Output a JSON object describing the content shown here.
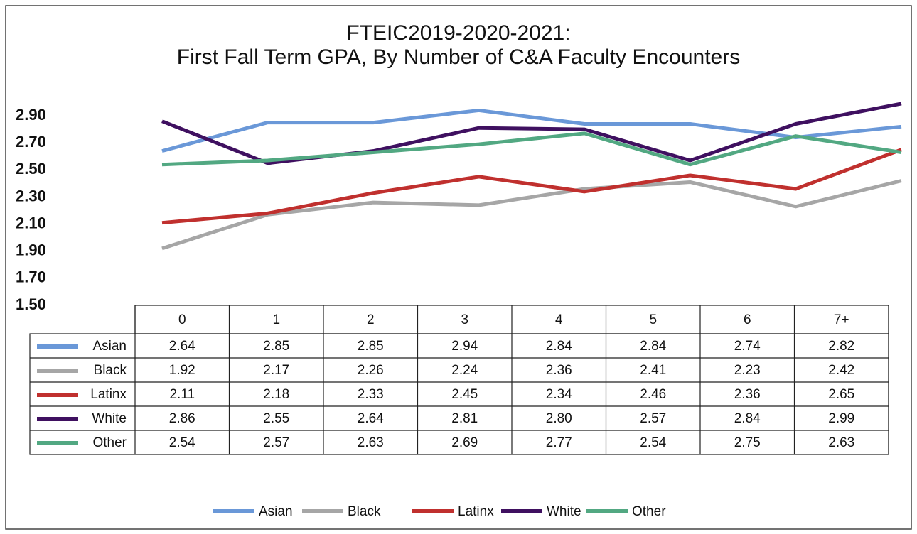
{
  "chart_data": {
    "type": "line",
    "title": [
      "FTEIC2019-2020-2021:",
      "First Fall Term GPA, By Number of C&A Faculty Encounters"
    ],
    "categories": [
      "0",
      "1",
      "2",
      "3",
      "4",
      "5",
      "6",
      "7+"
    ],
    "ylim": [
      1.5,
      3.0
    ],
    "yticks": [
      {
        "value": 1.5,
        "label": "1.50"
      },
      {
        "value": 1.7,
        "label": "1.70"
      },
      {
        "value": 1.9,
        "label": "1.90"
      },
      {
        "value": 2.1,
        "label": "2.10"
      },
      {
        "value": 2.3,
        "label": "2.30"
      },
      {
        "value": 2.5,
        "label": "2.50"
      },
      {
        "value": 2.7,
        "label": "2.70"
      },
      {
        "value": 2.9,
        "label": "2.90"
      }
    ],
    "grid": false,
    "legend": "bottom",
    "series": [
      {
        "name": "Asian",
        "color": "#6a98d8",
        "values": [
          2.64,
          2.85,
          2.85,
          2.94,
          2.84,
          2.84,
          2.74,
          2.82
        ],
        "value_labels": [
          "2.64",
          "2.85",
          "2.85",
          "2.94",
          "2.84",
          "2.84",
          "2.74",
          "2.82"
        ]
      },
      {
        "name": "Black",
        "color": "#a6a6a6",
        "values": [
          1.92,
          2.17,
          2.26,
          2.24,
          2.36,
          2.41,
          2.23,
          2.42
        ],
        "value_labels": [
          "1.92",
          "2.17",
          "2.26",
          "2.24",
          "2.36",
          "2.41",
          "2.23",
          "2.42"
        ]
      },
      {
        "name": "Latinx",
        "color": "#c0302e",
        "values": [
          2.11,
          2.18,
          2.33,
          2.45,
          2.34,
          2.46,
          2.36,
          2.65
        ],
        "value_labels": [
          "2.11",
          "2.18",
          "2.33",
          "2.45",
          "2.34",
          "2.46",
          "2.36",
          "2.65"
        ]
      },
      {
        "name": "White",
        "color": "#3f1060",
        "values": [
          2.86,
          2.55,
          2.64,
          2.81,
          2.8,
          2.57,
          2.84,
          2.99
        ],
        "value_labels": [
          "2.86",
          "2.55",
          "2.64",
          "2.81",
          "2.80",
          "2.57",
          "2.84",
          "2.99"
        ]
      },
      {
        "name": "Other",
        "color": "#52a882",
        "values": [
          2.54,
          2.57,
          2.63,
          2.69,
          2.77,
          2.54,
          2.75,
          2.63
        ],
        "value_labels": [
          "2.54",
          "2.57",
          "2.63",
          "2.69",
          "2.77",
          "2.54",
          "2.75",
          "2.63"
        ]
      }
    ]
  }
}
